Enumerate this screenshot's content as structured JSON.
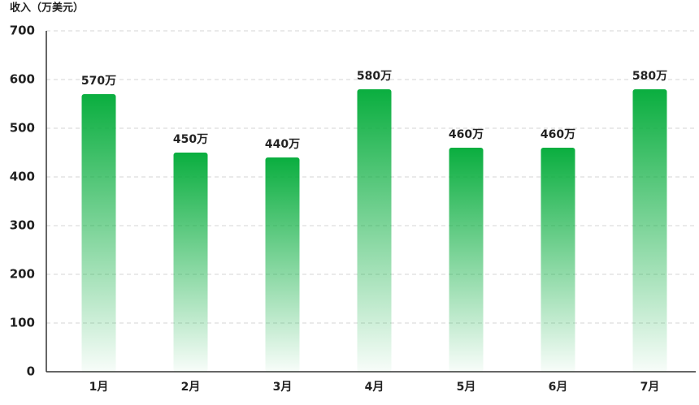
{
  "chart_data": {
    "type": "bar",
    "y_axis_label": "收入（万美元）",
    "categories": [
      "1月",
      "2月",
      "3月",
      "4月",
      "5月",
      "6月",
      "7月"
    ],
    "values": [
      570,
      450,
      440,
      580,
      460,
      460,
      580
    ],
    "value_labels": [
      "570万",
      "450万",
      "440万",
      "580万",
      "460万",
      "460万",
      "580万"
    ],
    "color": "#0aae3f",
    "ylim": [
      0,
      700
    ],
    "yticks": [
      0,
      100,
      200,
      300,
      400,
      500,
      600,
      700
    ],
    "grid": true
  }
}
